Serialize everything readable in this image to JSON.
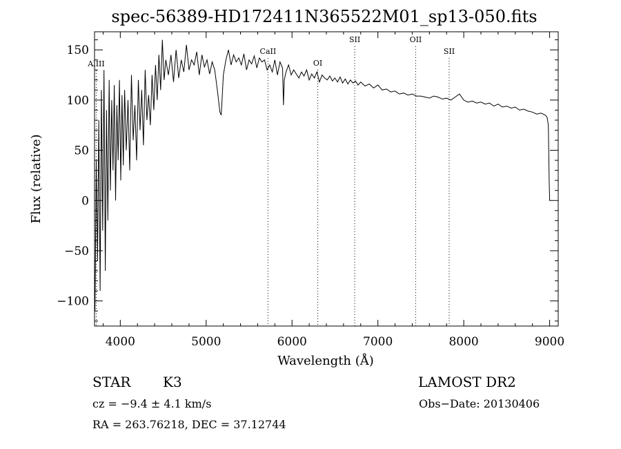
{
  "chart_data": {
    "type": "line",
    "title": "spec-56389-HD172411N365522M01_sp13-050.fits",
    "xlabel": "Wavelength (Å)",
    "ylabel": "Flux (relative)",
    "xlim": [
      3700,
      9100
    ],
    "ylim": [
      -125,
      168
    ],
    "xticks": [
      4000,
      5000,
      6000,
      7000,
      8000,
      9000
    ],
    "yticks": [
      -100,
      -50,
      0,
      50,
      100,
      150
    ],
    "xtick_labels": [
      "4000",
      "5000",
      "6000",
      "7000",
      "8000",
      "9000"
    ],
    "ytick_labels": [
      "−100",
      "−50",
      "0",
      "50",
      "100",
      "150"
    ],
    "grid": false,
    "series": [
      {
        "x": [
          3705,
          3720,
          3735,
          3750,
          3765,
          3780,
          3795,
          3810,
          3825,
          3840,
          3855,
          3870,
          3885,
          3900,
          3915,
          3930,
          3945,
          3960,
          3975,
          3990,
          4005,
          4020,
          4035,
          4050,
          4070,
          4090,
          4110,
          4130,
          4150,
          4170,
          4190,
          4210,
          4230,
          4250,
          4270,
          4290,
          4310,
          4330,
          4350,
          4370,
          4390,
          4410,
          4430,
          4450,
          4470,
          4490,
          4510,
          4530,
          4560,
          4590,
          4620,
          4650,
          4680,
          4710,
          4740,
          4770,
          4800,
          4830,
          4860,
          4890,
          4920,
          4950,
          4980,
          5010,
          5040,
          5070,
          5100,
          5130,
          5160,
          5175,
          5185,
          5200,
          5230,
          5260,
          5290,
          5320,
          5350,
          5380,
          5410,
          5440,
          5470,
          5500,
          5530,
          5560,
          5590,
          5620,
          5650,
          5680,
          5710,
          5740,
          5770,
          5800,
          5830,
          5860,
          5890,
          5900,
          5910,
          5930,
          5960,
          5990,
          6020,
          6050,
          6080,
          6110,
          6140,
          6170,
          6200,
          6230,
          6260,
          6290,
          6320,
          6350,
          6380,
          6410,
          6440,
          6470,
          6500,
          6530,
          6560,
          6590,
          6620,
          6650,
          6680,
          6710,
          6740,
          6770,
          6800,
          6850,
          6900,
          6950,
          7000,
          7050,
          7100,
          7150,
          7200,
          7250,
          7300,
          7350,
          7400,
          7450,
          7500,
          7550,
          7600,
          7650,
          7700,
          7750,
          7800,
          7850,
          7900,
          7950,
          8000,
          8050,
          8100,
          8150,
          8200,
          8250,
          8300,
          8350,
          8400,
          8450,
          8500,
          8550,
          8600,
          8650,
          8700,
          8750,
          8800,
          8850,
          8900,
          8950,
          8970,
          8985,
          8995,
          9000,
          9005
        ],
        "y": [
          -110,
          40,
          -60,
          80,
          -90,
          110,
          -30,
          130,
          -70,
          90,
          -20,
          120,
          10,
          100,
          30,
          115,
          0,
          95,
          40,
          120,
          20,
          105,
          35,
          110,
          50,
          100,
          30,
          125,
          60,
          95,
          40,
          120,
          70,
          110,
          55,
          130,
          80,
          105,
          75,
          125,
          90,
          135,
          100,
          145,
          110,
          160,
          120,
          140,
          125,
          145,
          118,
          150,
          122,
          140,
          128,
          155,
          130,
          140,
          135,
          148,
          125,
          145,
          133,
          140,
          126,
          138,
          130,
          110,
          88,
          85,
          100,
          125,
          140,
          150,
          135,
          145,
          138,
          142,
          135,
          146,
          130,
          140,
          136,
          144,
          132,
          142,
          138,
          140,
          130,
          135,
          128,
          140,
          125,
          138,
          132,
          95,
          120,
          128,
          135,
          125,
          130,
          126,
          122,
          128,
          124,
          130,
          120,
          126,
          122,
          128,
          118,
          125,
          122,
          120,
          124,
          119,
          122,
          118,
          123,
          117,
          121,
          116,
          120,
          117,
          119,
          115,
          118,
          114,
          116,
          112,
          115,
          110,
          111,
          108,
          109,
          106,
          107,
          105,
          106,
          104,
          104,
          103,
          102,
          104,
          103,
          101,
          102,
          100,
          103,
          106,
          100,
          98,
          99,
          97,
          98,
          96,
          97,
          94,
          96,
          93,
          94,
          92,
          93,
          90,
          91,
          89,
          88,
          86,
          87,
          85,
          83,
          75,
          20,
          0,
          0
        ]
      }
    ],
    "line_markers": [
      {
        "label": "AlIII",
        "x": 3720
      },
      {
        "label": "CaII",
        "x": 5720
      },
      {
        "label": "OI",
        "x": 6300
      },
      {
        "label": "SII",
        "x": 6730
      },
      {
        "label": "OII",
        "x": 7440
      },
      {
        "label": "SII",
        "x": 7830
      }
    ]
  },
  "info": {
    "object_class": "STAR",
    "subclass": "K3",
    "survey": "LAMOST DR2",
    "redshift": "cz = −9.4 ± 4.1 km/s",
    "obs_date": "Obs−Date: 20130406",
    "coords": "RA = 263.76218, DEC =  37.12744"
  }
}
